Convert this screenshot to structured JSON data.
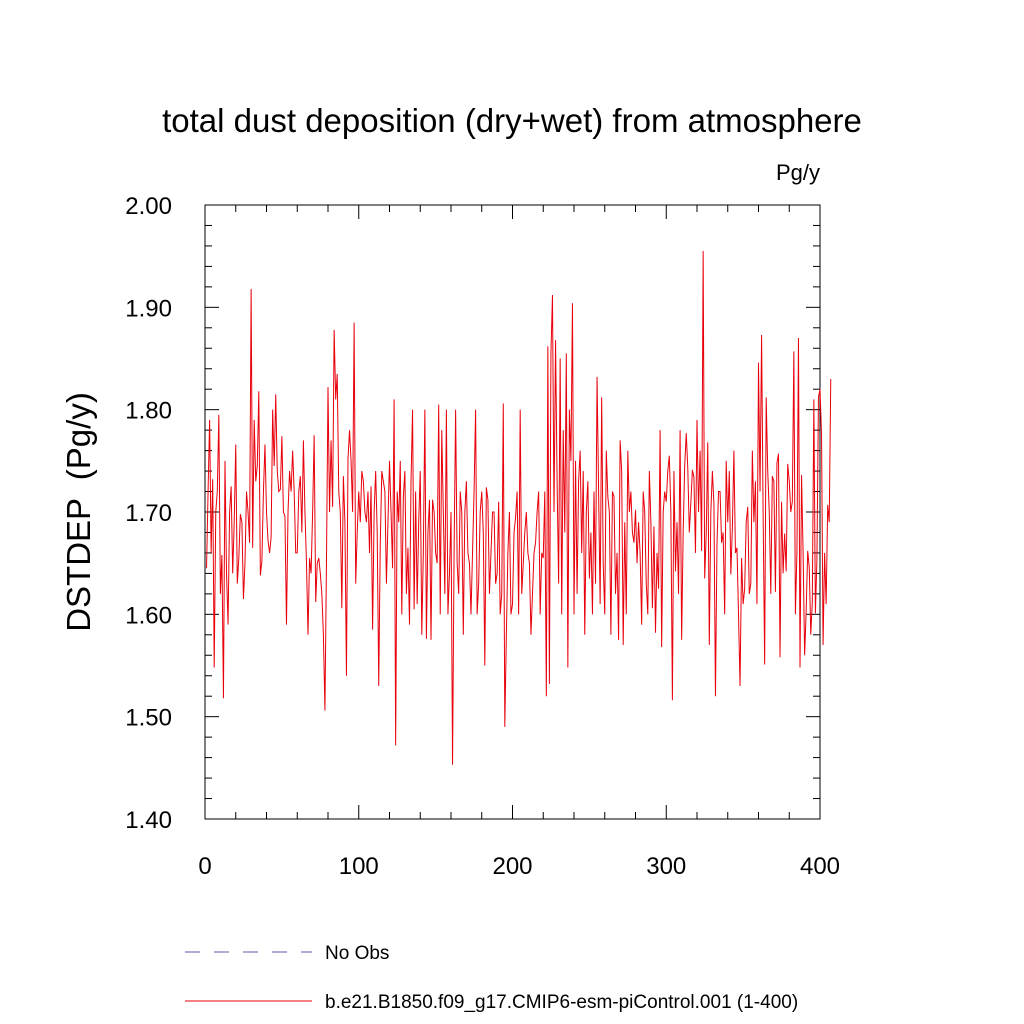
{
  "chart_data": {
    "type": "line",
    "title": "total dust deposition (dry+wet) from atmosphere",
    "units_label": "Pg/y",
    "xlabel": "",
    "ylabel": "DSTDEP  (Pg/y)",
    "xlim": [
      0,
      400
    ],
    "ylim": [
      1.4,
      2.0
    ],
    "x_ticks": [
      0,
      100,
      200,
      300,
      400
    ],
    "x_tick_labels": [
      "0",
      "100",
      "200",
      "300",
      "400"
    ],
    "y_ticks": [
      1.4,
      1.5,
      1.6,
      1.7,
      1.8,
      1.9,
      2.0
    ],
    "y_tick_labels": [
      "1.40",
      "1.50",
      "1.60",
      "1.70",
      "1.80",
      "1.90",
      "2.00"
    ],
    "legend": [
      {
        "label": "No Obs",
        "color": "#5a5aa8",
        "style": "dashed"
      },
      {
        "label": "b.e21.B1850.f09_g17.CMIP6-esm-piControl.001 (1-400)",
        "color": "#e8000b",
        "style": "solid"
      }
    ],
    "series": [
      {
        "name": "b.e21.B1850.f09_g17.CMIP6-esm-piControl.001 (1-400)",
        "color": "#e8000b",
        "x_start": 1,
        "x_step": 1,
        "values": [
          1.645,
          1.72,
          1.79,
          1.66,
          1.732,
          1.548,
          1.7,
          1.72,
          1.795,
          1.62,
          1.658,
          1.518,
          1.75,
          1.64,
          1.59,
          1.7,
          1.725,
          1.64,
          1.69,
          1.766,
          1.63,
          1.655,
          1.698,
          1.69,
          1.615,
          1.65,
          1.72,
          1.7,
          1.67,
          1.918,
          1.665,
          1.79,
          1.73,
          1.745,
          1.818,
          1.638,
          1.652,
          1.72,
          1.766,
          1.7,
          1.672,
          1.66,
          1.675,
          1.8,
          1.745,
          1.815,
          1.74,
          1.72,
          1.722,
          1.774,
          1.7,
          1.696,
          1.59,
          1.7,
          1.74,
          1.72,
          1.76,
          1.72,
          1.66,
          1.66,
          1.72,
          1.735,
          1.68,
          1.77,
          1.7,
          1.65,
          1.58,
          1.655,
          1.64,
          1.7,
          1.775,
          1.612,
          1.65,
          1.655,
          1.64,
          1.62,
          1.58,
          1.506,
          1.65,
          1.822,
          1.7,
          1.77,
          1.705,
          1.878,
          1.81,
          1.835,
          1.72,
          1.7,
          1.606,
          1.735,
          1.69,
          1.54,
          1.752,
          1.78,
          1.75,
          1.7,
          1.885,
          1.63,
          1.68,
          1.72,
          1.69,
          1.74,
          1.73,
          1.7,
          1.69,
          1.72,
          1.66,
          1.725,
          1.585,
          1.7,
          1.74,
          1.68,
          1.53,
          1.67,
          1.74,
          1.73,
          1.72,
          1.63,
          1.69,
          1.75,
          1.7,
          1.645,
          1.81,
          1.472,
          1.72,
          1.69,
          1.75,
          1.6,
          1.715,
          1.74,
          1.62,
          1.665,
          1.59,
          1.73,
          1.8,
          1.605,
          1.72,
          1.61,
          1.69,
          1.74,
          1.58,
          1.66,
          1.8,
          1.576,
          1.68,
          1.712,
          1.575,
          1.712,
          1.7,
          1.66,
          1.65,
          1.805,
          1.6,
          1.78,
          1.7,
          1.62,
          1.8,
          1.6,
          1.64,
          1.7,
          1.453,
          1.66,
          1.8,
          1.65,
          1.62,
          1.72,
          1.7,
          1.58,
          1.7,
          1.73,
          1.66,
          1.65,
          1.6,
          1.66,
          1.72,
          1.8,
          1.6,
          1.63,
          1.7,
          1.72,
          1.68,
          1.55,
          1.724,
          1.712,
          1.62,
          1.66,
          1.7,
          1.7,
          1.63,
          1.64,
          1.71,
          1.6,
          1.62,
          1.806,
          1.49,
          1.58,
          1.66,
          1.7,
          1.6,
          1.61,
          1.68,
          1.695,
          1.72,
          1.6,
          1.8,
          1.62,
          1.65,
          1.68,
          1.7,
          1.66,
          1.65,
          1.58,
          1.62,
          1.66,
          1.67,
          1.7,
          1.72,
          1.6,
          1.66,
          1.655,
          1.72,
          1.52,
          1.862,
          1.532,
          1.855,
          1.912,
          1.7,
          1.868,
          1.73,
          1.63,
          1.85,
          1.6,
          1.78,
          1.68,
          1.855,
          1.548,
          1.8,
          1.75,
          1.904,
          1.6,
          1.75,
          1.62,
          1.73,
          1.76,
          1.66,
          1.74,
          1.58,
          1.7,
          1.73,
          1.635,
          1.68,
          1.6,
          1.72,
          1.63,
          1.832,
          1.72,
          1.61,
          1.812,
          1.65,
          1.6,
          1.76,
          1.715,
          1.7,
          1.58,
          1.72,
          1.715,
          1.62,
          1.66,
          1.575,
          1.77,
          1.74,
          1.57,
          1.69,
          1.6,
          1.76,
          1.7,
          1.72,
          1.68,
          1.67,
          1.702,
          1.65,
          1.69,
          1.66,
          1.59,
          1.72,
          1.7,
          1.63,
          1.6,
          1.74,
          1.69,
          1.606,
          1.686,
          1.582,
          1.66,
          1.625,
          1.78,
          1.568,
          1.7,
          1.72,
          1.71,
          1.74,
          1.755,
          1.7,
          1.516,
          1.74,
          1.642,
          1.69,
          1.62,
          1.78,
          1.575,
          1.68,
          1.745,
          1.777,
          1.743,
          1.68,
          1.709,
          1.741,
          1.734,
          1.66,
          1.79,
          1.7,
          1.76,
          1.662,
          1.955,
          1.635,
          1.678,
          1.768,
          1.57,
          1.7,
          1.74,
          1.708,
          1.52,
          1.669,
          1.72,
          1.72,
          1.67,
          1.68,
          1.6,
          1.75,
          1.69,
          1.74,
          1.639,
          1.684,
          1.76,
          1.66,
          1.665,
          1.6,
          1.53,
          1.655,
          1.61,
          1.625,
          1.69,
          1.705,
          1.62,
          1.63,
          1.76,
          1.69,
          1.73,
          1.61,
          1.846,
          1.72,
          1.873,
          1.7,
          1.551,
          1.812,
          1.74,
          1.7,
          1.62,
          1.735,
          1.73,
          1.622,
          1.748,
          1.757,
          1.558,
          1.71,
          1.64,
          1.679,
          1.642,
          1.747,
          1.73,
          1.7,
          1.71,
          1.857,
          1.6,
          1.66,
          1.87,
          1.548,
          1.736,
          1.66,
          1.56,
          1.603,
          1.662,
          1.646,
          1.58,
          1.612,
          1.81,
          1.601,
          1.654,
          1.812,
          1.82,
          1.775,
          1.57,
          1.66,
          1.61,
          1.707,
          1.69,
          1.83
        ]
      }
    ]
  }
}
